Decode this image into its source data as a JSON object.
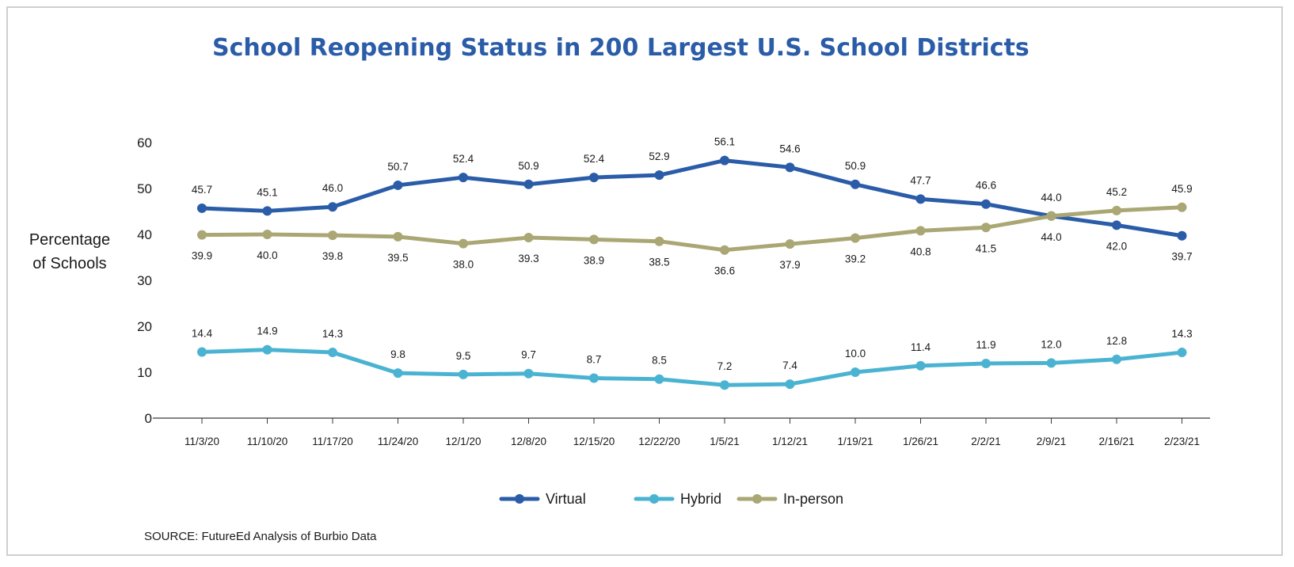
{
  "chart_data": {
    "type": "line",
    "title": "School Reopening Status in 200 Largest U.S. School Districts",
    "ylabel_lines": [
      "Percentage",
      "of Schools"
    ],
    "xlabel": "",
    "ylim": [
      0,
      60
    ],
    "yticks": [
      0,
      10,
      20,
      30,
      40,
      50,
      60
    ],
    "grid": false,
    "legend_position": "bottom-center",
    "x": [
      "11/3/20",
      "11/10/20",
      "11/17/20",
      "11/24/20",
      "12/1/20",
      "12/8/20",
      "12/15/20",
      "12/22/20",
      "1/5/21",
      "1/12/21",
      "1/19/21",
      "1/26/21",
      "2/2/21",
      "2/9/21",
      "2/16/21",
      "2/23/21"
    ],
    "series": [
      {
        "name": "Virtual",
        "color": "#2a5ca8",
        "labels": [
          "45.7",
          "45.1",
          "46.0",
          "50.7",
          "52.4",
          "50.9",
          "52.4",
          "52.9",
          "56.1",
          "54.6",
          "50.9",
          "47.7",
          "46.6",
          "44.0",
          "42.0",
          "39.7"
        ],
        "values": [
          45.7,
          45.1,
          46.0,
          50.7,
          52.4,
          50.9,
          52.4,
          52.9,
          56.1,
          54.6,
          50.9,
          47.7,
          46.6,
          44.0,
          42.0,
          39.7
        ],
        "label_position": [
          "above",
          "above",
          "above",
          "above",
          "above",
          "above",
          "above",
          "above",
          "above",
          "above",
          "above",
          "above",
          "above",
          "below",
          "below",
          "below"
        ]
      },
      {
        "name": "Hybrid",
        "color": "#4bb3d2",
        "labels": [
          "14.4",
          "14.9",
          "14.3",
          "9.8",
          "9.5",
          "9.7",
          "8.7",
          "8.5",
          "7.2",
          "7.4",
          "10.0",
          "11.4",
          "11.9",
          "12.0",
          "12.8",
          "14.3"
        ],
        "values": [
          14.4,
          14.9,
          14.3,
          9.8,
          9.5,
          9.7,
          8.7,
          8.5,
          7.2,
          7.4,
          10.0,
          11.4,
          11.9,
          12.0,
          12.8,
          14.3
        ],
        "label_position": [
          "above",
          "above",
          "above",
          "above",
          "above",
          "above",
          "above",
          "above",
          "above",
          "above",
          "above",
          "above",
          "above",
          "above",
          "above",
          "above"
        ]
      },
      {
        "name": "In-person",
        "color": "#aaa774",
        "labels": [
          "39.9",
          "40.0",
          "39.8",
          "39.5",
          "38.0",
          "39.3",
          "38.9",
          "38.5",
          "36.6",
          "37.9",
          "39.2",
          "40.8",
          "41.5",
          "44.0",
          "45.2",
          "45.9"
        ],
        "values": [
          39.9,
          40.0,
          39.8,
          39.5,
          38.0,
          39.3,
          38.9,
          38.5,
          36.6,
          37.9,
          39.2,
          40.8,
          41.5,
          44.0,
          45.2,
          45.9
        ],
        "label_position": [
          "below",
          "below",
          "below",
          "below",
          "below",
          "below",
          "below",
          "below",
          "below",
          "below",
          "below",
          "below",
          "below",
          "above",
          "above",
          "above"
        ]
      }
    ],
    "source": "SOURCE: FutureEd Analysis of Burbio Data"
  }
}
